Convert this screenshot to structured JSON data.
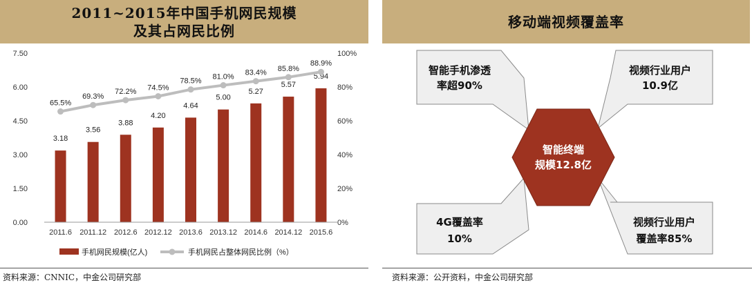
{
  "left": {
    "title_line1": "2011~2015年中国手机网民规模",
    "title_line2": "及其占网民比例",
    "source": "资料来源：CNNIC，中金公司研究部"
  },
  "right": {
    "title": "移动端视频覆盖率",
    "center": {
      "line1": "智能终端",
      "line2": "规模12.8亿"
    },
    "callouts": {
      "top_left": {
        "line1": "智能手机渗透",
        "line2": "率超90%"
      },
      "top_right": {
        "line1": "视频行业用户",
        "line2": "10.9亿"
      },
      "bottom_left": {
        "line1": "4G覆盖率",
        "line2": "10%"
      },
      "bottom_right": {
        "line1": "视频行业用户",
        "line2": "覆盖率85%"
      }
    },
    "source": "资料来源：公开资料，中金公司研究部"
  },
  "colors": {
    "bar": "#9e3320",
    "line": "#bdbdbd",
    "header": "#c8ae7d",
    "hexagon": "#9e3320",
    "callout_fill": "#efefef",
    "callout_stroke": "#8a8a8a"
  },
  "chart_data": {
    "type": "bar+line",
    "categories": [
      "2011.6",
      "2011.12",
      "2012.6",
      "2012.12",
      "2013.6",
      "2013.12",
      "2014.6",
      "2014.12",
      "2015.6"
    ],
    "series": [
      {
        "name": "手机网民规模(亿人)",
        "type": "bar",
        "axis": "left",
        "values": [
          3.18,
          3.56,
          3.88,
          4.2,
          4.64,
          5.0,
          5.27,
          5.57,
          5.94
        ],
        "labels": [
          "3.18",
          "3.56",
          "3.88",
          "4.20",
          "4.64",
          "5.00",
          "5.27",
          "5.57",
          "5.94"
        ]
      },
      {
        "name": "手机网民占整体网民比例（%）",
        "type": "line",
        "axis": "right",
        "values": [
          65.5,
          69.3,
          72.2,
          74.5,
          78.5,
          81.0,
          83.4,
          85.8,
          88.9
        ],
        "labels": [
          "65.5%",
          "69.3%",
          "72.2%",
          "74.5%",
          "78.5%",
          "81.0%",
          "83.4%",
          "85.8%",
          "88.9%"
        ]
      }
    ],
    "y_left": {
      "min": 0,
      "max": 7.5,
      "ticks": [
        "0.00",
        "1.50",
        "3.00",
        "4.50",
        "6.00",
        "7.50"
      ]
    },
    "y_right": {
      "min": 0,
      "max": 100,
      "ticks": [
        "0%",
        "20%",
        "40%",
        "60%",
        "80%",
        "100%"
      ]
    },
    "grid": false,
    "legend_position": "bottom"
  }
}
